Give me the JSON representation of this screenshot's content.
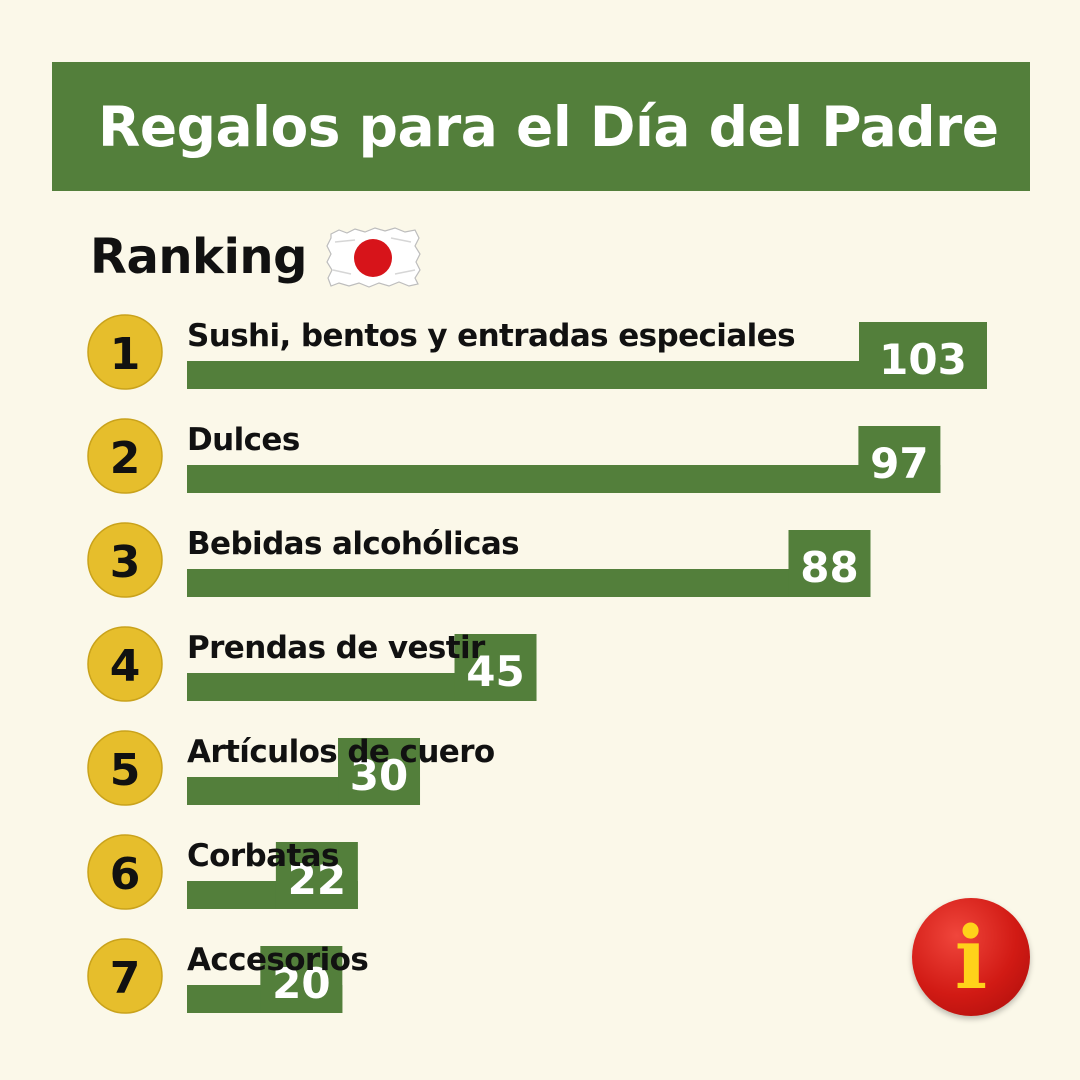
{
  "header": {
    "title": "Regalos para el Día del Padre"
  },
  "subheader": {
    "label": "Ranking",
    "flag_icon": "japan-flag-icon"
  },
  "colors": {
    "banner": "#537f3b",
    "bar": "#537f3b",
    "background": "#fbf8e9",
    "rank_badge": "#e6be2c",
    "flag_red": "#d7141a",
    "info_red": "#d11a14",
    "info_yellow": "#ffd21a"
  },
  "info_button": {
    "icon": "info-icon",
    "glyph": "i"
  },
  "chart_data": {
    "type": "bar",
    "orientation": "horizontal",
    "ranks": [
      "1",
      "2",
      "3",
      "4",
      "5",
      "6",
      "7"
    ],
    "categories": [
      "Sushi, bentos y entradas especiales",
      "Dulces",
      "Bebidas alcohólicas",
      "Prendas de vestir",
      "Artículos de cuero",
      "Corbatas",
      "Accesorios"
    ],
    "values": [
      103,
      97,
      88,
      45,
      30,
      22,
      20
    ],
    "value_labels": [
      "103",
      "97",
      "88",
      "45",
      "30",
      "22",
      "20"
    ],
    "grid": false,
    "legend": "none"
  }
}
